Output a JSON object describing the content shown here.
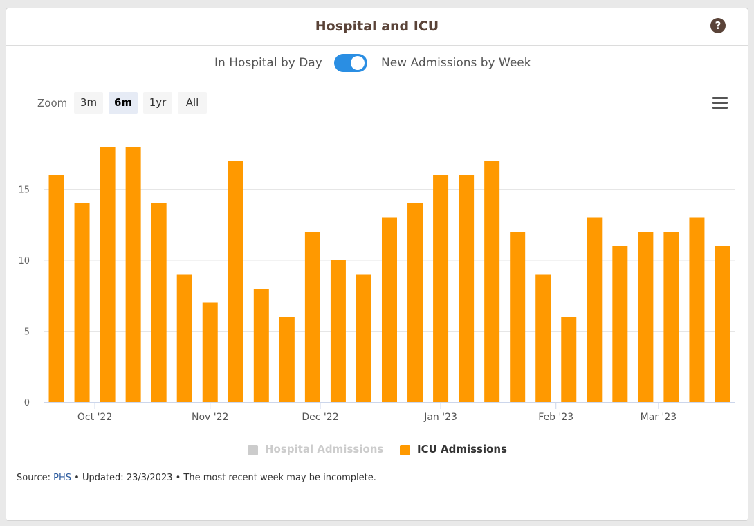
{
  "header": {
    "title": "Hospital and ICU",
    "help_icon": "question-circle-icon"
  },
  "toggle": {
    "left_label": "In Hospital by Day",
    "right_label": "New Admissions by Week",
    "state": "on"
  },
  "zoom": {
    "label": "Zoom",
    "options": [
      "3m",
      "6m",
      "1yr",
      "All"
    ],
    "selected": "6m"
  },
  "menu_icon": "hamburger-menu-icon",
  "legend": [
    {
      "label": "Hospital Admissions",
      "color": "#cccccc",
      "enabled": false
    },
    {
      "label": "ICU Admissions",
      "color": "#ff9900",
      "enabled": true
    }
  ],
  "footer": {
    "prefix": "Source: ",
    "link": "PHS",
    "suffix": " • Updated: 23/3/2023 • The most recent week may be incomplete."
  },
  "colors": {
    "bar": "#ff9900",
    "grid": "#e6e6e6",
    "axis": "#ccd6eb"
  },
  "chart_data": {
    "type": "bar",
    "series": [
      {
        "name": "ICU Admissions",
        "values": [
          16,
          14,
          18,
          18,
          14,
          9,
          7,
          17,
          8,
          6,
          12,
          10,
          9,
          13,
          14,
          16,
          16,
          17,
          12,
          9,
          6,
          13,
          11,
          12,
          12,
          13,
          11
        ]
      }
    ],
    "x_tick_labels": [
      "Oct '22",
      "Nov '22",
      "Dec '22",
      "Jan '23",
      "Feb '23",
      "Mar '23"
    ],
    "x_tick_positions": [
      2,
      6.5,
      10.8,
      15.5,
      20,
      24
    ],
    "y_tick_labels": [
      "0",
      "5",
      "10",
      "15"
    ],
    "ylim": [
      0,
      18
    ],
    "grid": true
  }
}
